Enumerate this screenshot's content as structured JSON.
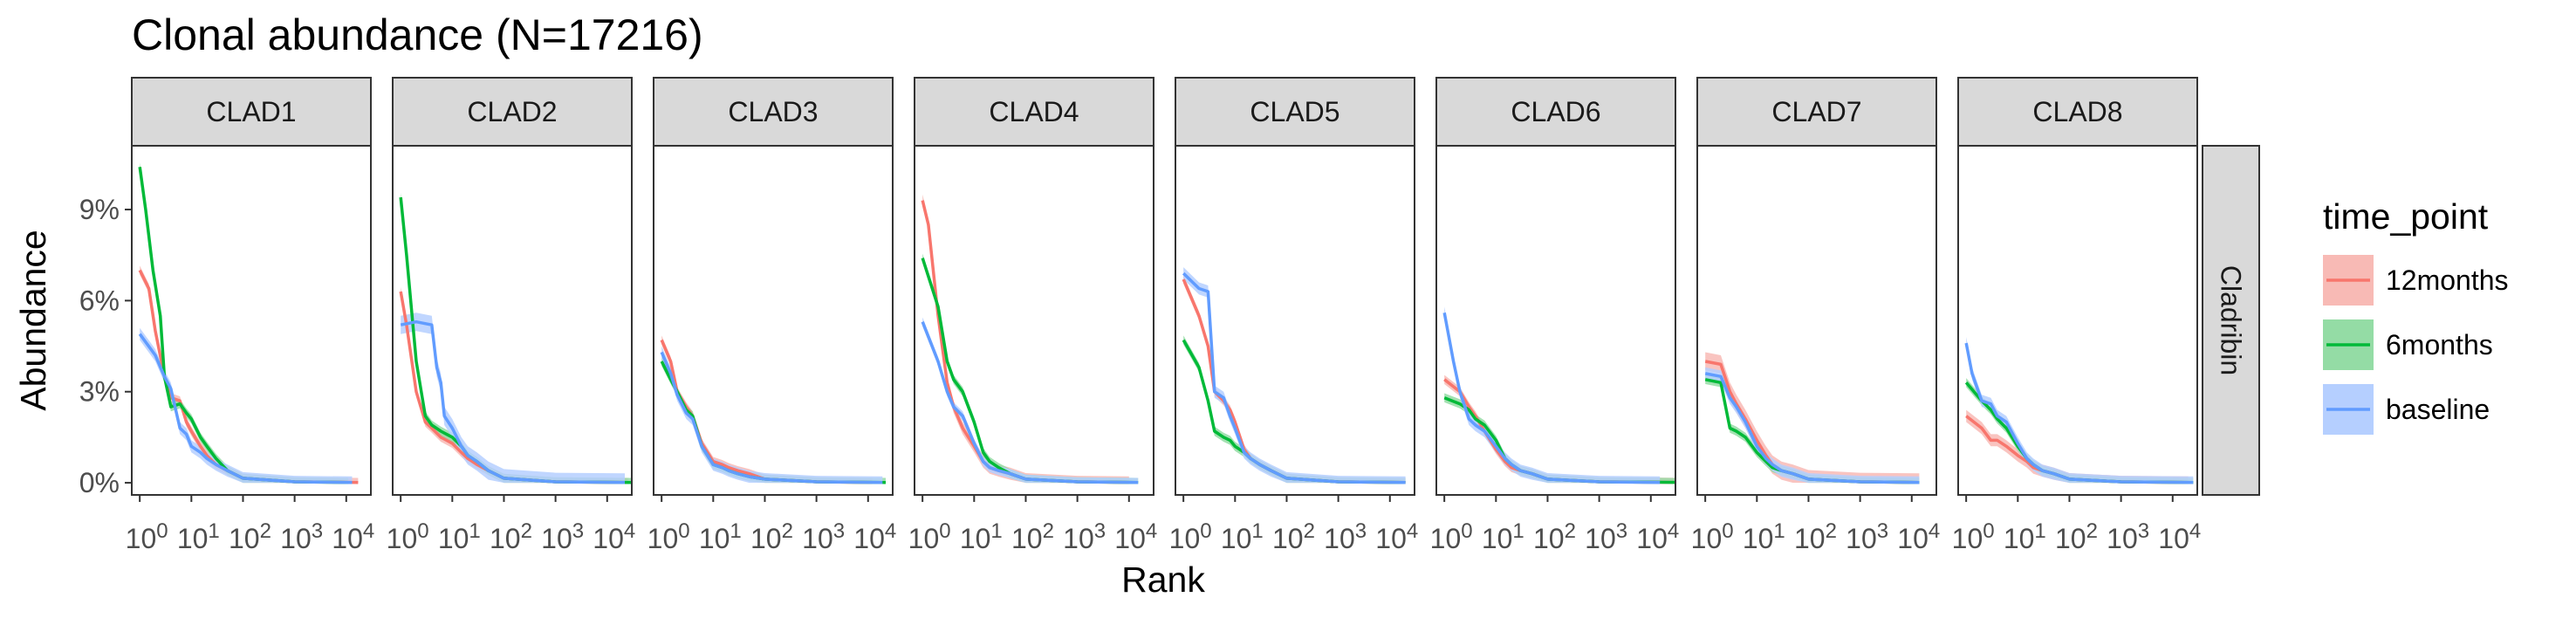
{
  "chart_data": {
    "type": "line",
    "title": "Clonal abundance (N=17216)",
    "xlabel": "Rank",
    "ylabel": "Abundance",
    "x_scale": "log10",
    "xlim": [
      0.7,
      30000
    ],
    "ylim": [
      -0.004,
      0.111
    ],
    "y_ticks": [
      {
        "value": 0.0,
        "label": "0%"
      },
      {
        "value": 0.03,
        "label": "3%"
      },
      {
        "value": 0.06,
        "label": "6%"
      },
      {
        "value": 0.09,
        "label": "9%"
      }
    ],
    "x_ticks": [
      {
        "value": 1,
        "base": "10",
        "exp": "0"
      },
      {
        "value": 10,
        "base": "10",
        "exp": "1"
      },
      {
        "value": 100,
        "base": "10",
        "exp": "2"
      },
      {
        "value": 1000,
        "base": "10",
        "exp": "3"
      },
      {
        "value": 10000,
        "base": "10",
        "exp": "4"
      }
    ],
    "row_strip": "Cladribin",
    "legend": {
      "title": "time_point",
      "position": "right",
      "entries": [
        {
          "name": "12months",
          "color": "#F8766D",
          "fill": "#F8BAB5"
        },
        {
          "name": "6months",
          "color": "#00BA38",
          "fill": "#94DCA5"
        },
        {
          "name": "baseline",
          "color": "#619CFF",
          "fill": "#B5CFFF"
        }
      ]
    },
    "panels": [
      {
        "label": "CLAD1",
        "series": [
          {
            "name": "12months",
            "max_rank": 17000,
            "band": 0.0015,
            "x": [
              1,
              1.5,
              2,
              3,
              4,
              6,
              8,
              10,
              15,
              20,
              30,
              50,
              100,
              1000,
              17000
            ],
            "y": [
              0.07,
              0.064,
              0.05,
              0.035,
              0.028,
              0.027,
              0.02,
              0.017,
              0.012,
              0.009,
              0.006,
              0.004,
              0.0015,
              0.0003,
              0.0001
            ]
          },
          {
            "name": "6months",
            "max_rank": 11000,
            "band": 0.0015,
            "x": [
              1,
              1.3,
              1.8,
              2.5,
              3,
              4,
              6,
              8,
              10,
              15,
              20,
              30,
              50,
              100,
              1000,
              11000
            ],
            "y": [
              0.104,
              0.09,
              0.07,
              0.055,
              0.035,
              0.025,
              0.026,
              0.023,
              0.021,
              0.015,
              0.012,
              0.008,
              0.004,
              0.0015,
              0.0003,
              0.0001
            ]
          },
          {
            "name": "baseline",
            "max_rank": 13000,
            "band": 0.002,
            "x": [
              1,
              2,
              3,
              4,
              6,
              8,
              10,
              15,
              20,
              30,
              50,
              100,
              1000,
              13000
            ],
            "y": [
              0.049,
              0.042,
              0.035,
              0.031,
              0.018,
              0.016,
              0.012,
              0.01,
              0.008,
              0.006,
              0.004,
              0.0015,
              0.0003,
              0.0001
            ]
          }
        ]
      },
      {
        "label": "CLAD2",
        "series": [
          {
            "name": "12months",
            "max_rank": 25000,
            "band": 0.0015,
            "x": [
              1,
              1.3,
              2,
              3,
              4,
              6,
              10,
              15,
              20,
              30,
              50,
              100,
              1000,
              25000
            ],
            "y": [
              0.063,
              0.052,
              0.03,
              0.02,
              0.018,
              0.015,
              0.013,
              0.01,
              0.008,
              0.006,
              0.004,
              0.0015,
              0.0003,
              0.0001
            ]
          },
          {
            "name": "6months",
            "max_rank": 30000,
            "band": 0.0015,
            "x": [
              1,
              1.3,
              2,
              3,
              4,
              6,
              10,
              15,
              20,
              30,
              50,
              100,
              1000,
              30000
            ],
            "y": [
              0.094,
              0.075,
              0.04,
              0.022,
              0.019,
              0.017,
              0.015,
              0.012,
              0.009,
              0.007,
              0.004,
              0.0015,
              0.0003,
              0.0001
            ]
          },
          {
            "name": "baseline",
            "max_rank": 22000,
            "band": 0.003,
            "x": [
              1,
              2,
              4,
              5,
              6,
              7,
              10,
              15,
              20,
              30,
              50,
              100,
              1000,
              22000
            ],
            "y": [
              0.052,
              0.053,
              0.052,
              0.038,
              0.033,
              0.022,
              0.018,
              0.012,
              0.009,
              0.007,
              0.004,
              0.0015,
              0.0003,
              0.0001
            ]
          }
        ]
      },
      {
        "label": "CLAD3",
        "series": [
          {
            "name": "12months",
            "max_rank": 12000,
            "band": 0.0015,
            "x": [
              1,
              1.5,
              2,
              3,
              4,
              6,
              10,
              15,
              20,
              30,
              50,
              100,
              1000,
              12000
            ],
            "y": [
              0.047,
              0.04,
              0.03,
              0.025,
              0.022,
              0.013,
              0.007,
              0.006,
              0.005,
              0.004,
              0.003,
              0.0012,
              0.0003,
              0.0001
            ]
          },
          {
            "name": "6months",
            "max_rank": 22000,
            "band": 0.0015,
            "x": [
              1,
              1.5,
              2,
              3,
              4,
              6,
              10,
              15,
              20,
              30,
              50,
              100,
              1000,
              22000
            ],
            "y": [
              0.04,
              0.034,
              0.03,
              0.024,
              0.022,
              0.012,
              0.006,
              0.005,
              0.004,
              0.003,
              0.002,
              0.0012,
              0.0003,
              0.0001
            ]
          },
          {
            "name": "baseline",
            "max_rank": 19000,
            "band": 0.002,
            "x": [
              1,
              1.5,
              2,
              3,
              4,
              6,
              10,
              15,
              20,
              30,
              50,
              100,
              1000,
              19000
            ],
            "y": [
              0.043,
              0.036,
              0.029,
              0.023,
              0.021,
              0.012,
              0.006,
              0.005,
              0.004,
              0.003,
              0.002,
              0.0012,
              0.0003,
              0.0001
            ]
          }
        ]
      },
      {
        "label": "CLAD4",
        "series": [
          {
            "name": "12months",
            "max_rank": 10000,
            "band": 0.002,
            "x": [
              1,
              1.3,
              2,
              3,
              4,
              6,
              10,
              15,
              20,
              30,
              50,
              100,
              1000,
              10000
            ],
            "y": [
              0.093,
              0.085,
              0.055,
              0.033,
              0.025,
              0.018,
              0.012,
              0.007,
              0.005,
              0.004,
              0.003,
              0.0012,
              0.0003,
              0.0001
            ]
          },
          {
            "name": "6months",
            "max_rank": 15000,
            "band": 0.0015,
            "x": [
              1,
              2,
              3,
              4,
              6,
              10,
              15,
              20,
              30,
              50,
              100,
              1000,
              15000
            ],
            "y": [
              0.074,
              0.058,
              0.04,
              0.034,
              0.03,
              0.02,
              0.01,
              0.007,
              0.005,
              0.003,
              0.0012,
              0.0003,
              0.0001
            ]
          },
          {
            "name": "baseline",
            "max_rank": 15000,
            "band": 0.0015,
            "x": [
              1,
              2,
              3,
              4,
              6,
              10,
              15,
              20,
              30,
              50,
              100,
              1000,
              15000
            ],
            "y": [
              0.053,
              0.04,
              0.03,
              0.025,
              0.022,
              0.013,
              0.007,
              0.005,
              0.004,
              0.003,
              0.0012,
              0.0003,
              0.0001
            ]
          }
        ]
      },
      {
        "label": "CLAD5",
        "series": [
          {
            "name": "12months",
            "max_rank": 20000,
            "band": 0.0015,
            "x": [
              1,
              2,
              3,
              4,
              6,
              8,
              10,
              15,
              20,
              30,
              50,
              100,
              1000,
              20000
            ],
            "y": [
              0.067,
              0.055,
              0.045,
              0.03,
              0.027,
              0.024,
              0.02,
              0.011,
              0.008,
              0.006,
              0.004,
              0.0015,
              0.0003,
              0.0001
            ]
          },
          {
            "name": "6months",
            "max_rank": 20000,
            "band": 0.0015,
            "x": [
              1,
              2,
              3,
              4,
              6,
              8,
              10,
              15,
              20,
              30,
              50,
              100,
              1000,
              20000
            ],
            "y": [
              0.047,
              0.038,
              0.027,
              0.017,
              0.015,
              0.014,
              0.012,
              0.01,
              0.008,
              0.006,
              0.004,
              0.0015,
              0.0003,
              0.0001
            ]
          },
          {
            "name": "baseline",
            "max_rank": 20000,
            "band": 0.002,
            "x": [
              1,
              2,
              3,
              4,
              6,
              8,
              10,
              15,
              20,
              30,
              50,
              100,
              1000,
              20000
            ],
            "y": [
              0.069,
              0.064,
              0.063,
              0.03,
              0.028,
              0.022,
              0.018,
              0.01,
              0.008,
              0.006,
              0.004,
              0.0015,
              0.0003,
              0.0001
            ]
          }
        ]
      },
      {
        "label": "CLAD6",
        "series": [
          {
            "name": "12months",
            "max_rank": 60000,
            "band": 0.0015,
            "x": [
              1,
              2,
              3,
              4,
              6,
              10,
              15,
              20,
              30,
              50,
              100,
              1000,
              60000
            ],
            "y": [
              0.034,
              0.03,
              0.025,
              0.022,
              0.017,
              0.011,
              0.007,
              0.005,
              0.004,
              0.003,
              0.0012,
              0.0003,
              0.0001
            ]
          },
          {
            "name": "6months",
            "max_rank": 35000,
            "band": 0.0015,
            "x": [
              1,
              2,
              3,
              4,
              6,
              10,
              15,
              20,
              30,
              50,
              100,
              1000,
              35000
            ],
            "y": [
              0.028,
              0.026,
              0.024,
              0.021,
              0.019,
              0.014,
              0.008,
              0.006,
              0.004,
              0.003,
              0.0012,
              0.0003,
              0.0001
            ]
          },
          {
            "name": "baseline",
            "max_rank": 15000,
            "band": 0.002,
            "x": [
              1,
              1.5,
              2,
              3,
              4,
              6,
              10,
              15,
              20,
              30,
              50,
              100,
              1000,
              15000
            ],
            "y": [
              0.056,
              0.04,
              0.03,
              0.021,
              0.019,
              0.017,
              0.012,
              0.008,
              0.006,
              0.004,
              0.003,
              0.0012,
              0.0003,
              0.0001
            ]
          }
        ]
      },
      {
        "label": "CLAD7",
        "series": [
          {
            "name": "12months",
            "max_rank": 14000,
            "band": 0.003,
            "x": [
              1,
              2,
              3,
              4,
              6,
              10,
              15,
              20,
              30,
              50,
              100,
              1000,
              14000
            ],
            "y": [
              0.04,
              0.039,
              0.03,
              0.026,
              0.021,
              0.014,
              0.009,
              0.006,
              0.004,
              0.003,
              0.0012,
              0.0003,
              0.0001
            ]
          },
          {
            "name": "6months",
            "max_rank": 14000,
            "band": 0.0015,
            "x": [
              1,
              2,
              3,
              4,
              6,
              10,
              15,
              20,
              30,
              50,
              100,
              1000,
              14000
            ],
            "y": [
              0.034,
              0.033,
              0.018,
              0.017,
              0.015,
              0.01,
              0.007,
              0.005,
              0.004,
              0.003,
              0.0012,
              0.0003,
              0.0001
            ]
          },
          {
            "name": "baseline",
            "max_rank": 14000,
            "band": 0.002,
            "x": [
              1,
              2,
              3,
              4,
              6,
              10,
              15,
              20,
              30,
              50,
              100,
              1000,
              14000
            ],
            "y": [
              0.036,
              0.035,
              0.028,
              0.025,
              0.02,
              0.012,
              0.008,
              0.006,
              0.004,
              0.003,
              0.0012,
              0.0003,
              0.0001
            ]
          }
        ]
      },
      {
        "label": "CLAD8",
        "series": [
          {
            "name": "12months",
            "max_rank": 20000,
            "band": 0.002,
            "x": [
              1,
              2,
              3,
              4,
              6,
              10,
              15,
              20,
              30,
              50,
              100,
              1000,
              20000
            ],
            "y": [
              0.022,
              0.018,
              0.014,
              0.014,
              0.012,
              0.009,
              0.007,
              0.005,
              0.004,
              0.003,
              0.0012,
              0.0003,
              0.0001
            ]
          },
          {
            "name": "6months",
            "max_rank": 25000,
            "band": 0.0015,
            "x": [
              1,
              2,
              3,
              4,
              6,
              10,
              15,
              20,
              30,
              50,
              100,
              1000,
              25000
            ],
            "y": [
              0.033,
              0.027,
              0.024,
              0.021,
              0.018,
              0.012,
              0.008,
              0.006,
              0.004,
              0.003,
              0.0012,
              0.0003,
              0.0001
            ]
          },
          {
            "name": "baseline",
            "max_rank": 25000,
            "band": 0.002,
            "x": [
              1,
              1.3,
              2,
              3,
              4,
              6,
              10,
              15,
              20,
              30,
              50,
              100,
              1000,
              25000
            ],
            "y": [
              0.046,
              0.036,
              0.027,
              0.026,
              0.022,
              0.02,
              0.013,
              0.008,
              0.006,
              0.004,
              0.003,
              0.0012,
              0.0003,
              0.0001
            ]
          }
        ]
      }
    ]
  }
}
